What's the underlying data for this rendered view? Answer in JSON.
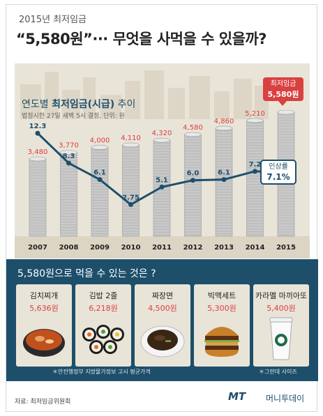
{
  "header": {
    "subtitle": "2015년 최저임금",
    "title": "“5,580원”··· 무엇을 사먹을 수 있을까?"
  },
  "chart_data": {
    "type": "bar",
    "title_prefix": "연도별 ",
    "title_bold": "최저임금(시급)",
    "title_suffix": " 추이",
    "subtitle": "법정시한 27일 새벽 5시 결정, 단위: 원",
    "categories": [
      "2007",
      "2008",
      "2009",
      "2010",
      "2011",
      "2012",
      "2013",
      "2014",
      "2015"
    ],
    "series": [
      {
        "values": [
          3480,
          3770,
          4000,
          4110,
          4320,
          4580,
          4860,
          5210,
          5580
        ],
        "labels": [
          "3,480",
          "3,770",
          "4,000",
          "4,110",
          "4,320",
          "4,580",
          "4,860",
          "5,210",
          ""
        ]
      },
      {
        "values": [
          12.3,
          8.3,
          6.1,
          2.75,
          5.1,
          6.0,
          6.1,
          7.2,
          7.1
        ],
        "labels": [
          "12.3",
          "8.3",
          "6.1",
          "2.75",
          "5.1",
          "6.0",
          "6.1",
          "7.2",
          ""
        ]
      }
    ],
    "callout_wage": {
      "label": "최저임금",
      "value": "5,580원"
    },
    "callout_rate": {
      "label": "인상률",
      "value": "7.1%"
    },
    "colors": {
      "bar_label": "#d94040",
      "line": "#1d4f6b"
    }
  },
  "food": {
    "title": "5,580원으로 먹을 수 있는 것은 ?",
    "items": [
      {
        "name": "김치찌개",
        "price": "5,636원",
        "icon": "kimchi-stew-icon"
      },
      {
        "name": "김밥 2줄",
        "price": "6,218원",
        "icon": "kimbap-icon"
      },
      {
        "name": "짜장면",
        "price": "4,500원",
        "icon": "jajangmyeon-icon"
      },
      {
        "name": "빅맥세트",
        "price": "5,300원",
        "icon": "burger-icon"
      },
      {
        "name": "카라멜 마끼아또",
        "price": "5,400원",
        "icon": "coffee-cup-icon"
      }
    ],
    "note_left": "＊안전행정부 지방물가정보 고시 평균가격",
    "note_right": "＊그란데 사이즈"
  },
  "footer": {
    "source": "자료: 최저임금위원회",
    "brand": "MT",
    "brand_ko": "머니투데이"
  }
}
